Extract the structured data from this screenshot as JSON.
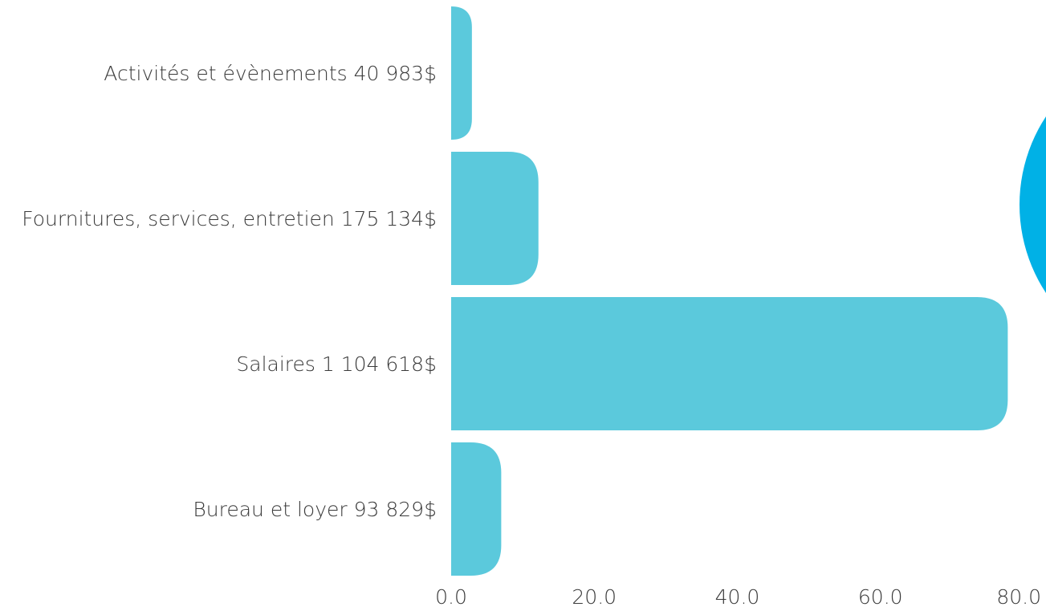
{
  "chart_data": {
    "type": "bar",
    "orientation": "horizontal",
    "categories": [
      "Activités et évènements 40 983$",
      "Fournitures, services, entretien 175 134$",
      "Salaires 1 104 618$",
      "Bureau et loyer 93 829$"
    ],
    "values": [
      2.9,
      12.2,
      77.8,
      7.0
    ],
    "xlim": [
      0,
      80
    ],
    "xticks": [
      "0.0",
      "20.0",
      "40.0",
      "60.0",
      "80.0"
    ],
    "xtick_values": [
      0,
      20,
      40,
      60,
      80
    ],
    "grid": false,
    "bar_color": "#5bc9dc",
    "accent_color": "#00b1e6"
  }
}
